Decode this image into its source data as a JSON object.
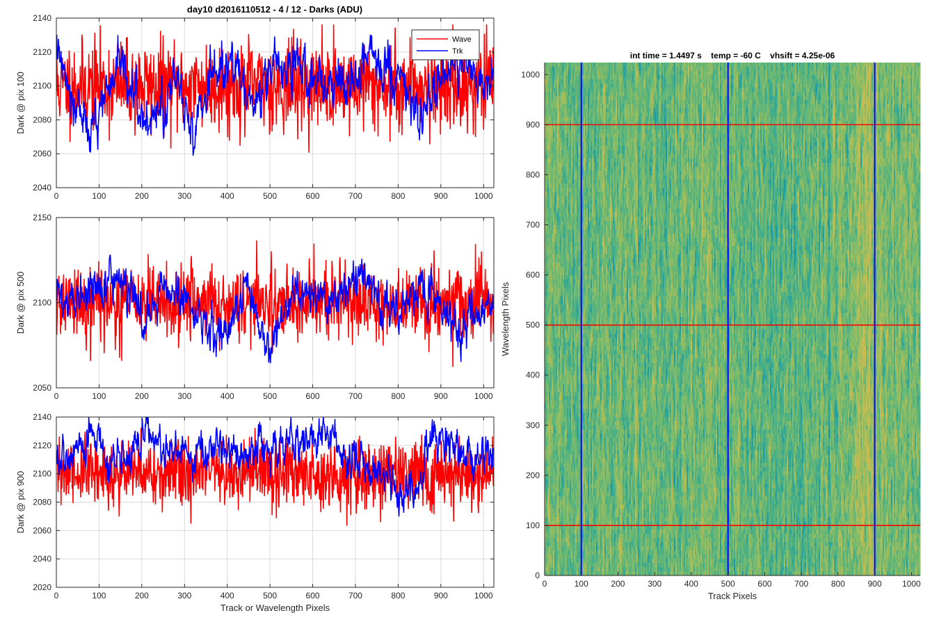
{
  "figure": {
    "title": "day10 d2016110512 - 4 / 12 - Darks (ADU)"
  },
  "colors": {
    "wave": "#ff0000",
    "trk": "#0000ff",
    "grid": "#d9d9d9",
    "axis": "#262626"
  },
  "chart_data": [
    {
      "type": "line",
      "title": "day10 d2016110512 - 4 / 12 - Darks (ADU)",
      "ylabel": "Dark @ pix 100",
      "xlabel": "",
      "xlim": [
        0,
        1024
      ],
      "ylim": [
        2040,
        2140
      ],
      "xticks": [
        0,
        100,
        200,
        300,
        400,
        500,
        600,
        700,
        800,
        900,
        1000
      ],
      "yticks": [
        2040,
        2060,
        2080,
        2100,
        2120,
        2140
      ],
      "grid": true,
      "legend": {
        "placement": "top-right",
        "entries": [
          "Wave",
          "Trk"
        ]
      },
      "series": [
        {
          "name": "Wave",
          "color": "#ff0000",
          "mean": 2100,
          "noise": 13,
          "seed": 11,
          "min": 2053,
          "max": 2136
        },
        {
          "name": "Trk",
          "color": "#0000ff",
          "seed": 12,
          "min": 2058,
          "max": 2130,
          "trend": [
            [
              0,
              2124
            ],
            [
              40,
              2095
            ],
            [
              80,
              2070
            ],
            [
              120,
              2100
            ],
            [
              160,
              2112
            ],
            [
              200,
              2080
            ],
            [
              240,
              2082
            ],
            [
              280,
              2105
            ],
            [
              320,
              2075
            ],
            [
              360,
              2105
            ],
            [
              400,
              2112
            ],
            [
              460,
              2090
            ],
            [
              500,
              2110
            ],
            [
              540,
              2115
            ],
            [
              600,
              2105
            ],
            [
              640,
              2098
            ],
            [
              700,
              2100
            ],
            [
              740,
              2118
            ],
            [
              780,
              2112
            ],
            [
              820,
              2100
            ],
            [
              860,
              2075
            ],
            [
              900,
              2110
            ],
            [
              960,
              2114
            ],
            [
              1000,
              2103
            ],
            [
              1024,
              2100
            ]
          ],
          "noise": 6
        }
      ]
    },
    {
      "type": "line",
      "ylabel": "Dark @ pix 500",
      "xlabel": "",
      "xlim": [
        0,
        1024
      ],
      "ylim": [
        2050,
        2150
      ],
      "xticks": [
        0,
        100,
        200,
        300,
        400,
        500,
        600,
        700,
        800,
        900,
        1000
      ],
      "yticks": [
        2050,
        2100,
        2150
      ],
      "grid": true,
      "series": [
        {
          "name": "Wave",
          "color": "#ff0000",
          "mean": 2100,
          "noise": 11,
          "seed": 21,
          "min": 2055,
          "max": 2140
        },
        {
          "name": "Trk",
          "color": "#0000ff",
          "seed": 22,
          "min": 2054,
          "max": 2128,
          "trend": [
            [
              0,
              2105
            ],
            [
              40,
              2095
            ],
            [
              80,
              2110
            ],
            [
              150,
              2115
            ],
            [
              200,
              2090
            ],
            [
              240,
              2108
            ],
            [
              300,
              2105
            ],
            [
              360,
              2080
            ],
            [
              400,
              2085
            ],
            [
              440,
              2110
            ],
            [
              500,
              2065
            ],
            [
              540,
              2100
            ],
            [
              600,
              2105
            ],
            [
              640,
              2100
            ],
            [
              700,
              2120
            ],
            [
              740,
              2105
            ],
            [
              800,
              2098
            ],
            [
              860,
              2108
            ],
            [
              900,
              2100
            ],
            [
              940,
              2085
            ],
            [
              1000,
              2095
            ],
            [
              1024,
              2100
            ]
          ],
          "noise": 5
        }
      ]
    },
    {
      "type": "line",
      "ylabel": "Dark @ pix 900",
      "xlabel": "Track or Wavelength Pixels",
      "xlim": [
        0,
        1024
      ],
      "ylim": [
        2020,
        2140
      ],
      "xticks": [
        0,
        100,
        200,
        300,
        400,
        500,
        600,
        700,
        800,
        900,
        1000
      ],
      "yticks": [
        2020,
        2040,
        2060,
        2080,
        2100,
        2120,
        2140
      ],
      "grid": true,
      "series": [
        {
          "name": "Wave",
          "color": "#ff0000",
          "mean": 2100,
          "noise": 12,
          "seed": 31,
          "min": 2037,
          "max": 2132
        },
        {
          "name": "Trk",
          "color": "#0000ff",
          "seed": 32,
          "min": 2068,
          "max": 2140,
          "trend": [
            [
              0,
              2108
            ],
            [
              40,
              2118
            ],
            [
              80,
              2128
            ],
            [
              120,
              2110
            ],
            [
              160,
              2108
            ],
            [
              220,
              2130
            ],
            [
              250,
              2110
            ],
            [
              300,
              2115
            ],
            [
              360,
              2120
            ],
            [
              400,
              2110
            ],
            [
              460,
              2115
            ],
            [
              520,
              2118
            ],
            [
              580,
              2120
            ],
            [
              640,
              2125
            ],
            [
              700,
              2110
            ],
            [
              760,
              2100
            ],
            [
              800,
              2085
            ],
            [
              840,
              2090
            ],
            [
              880,
              2130
            ],
            [
              920,
              2120
            ],
            [
              960,
              2112
            ],
            [
              1024,
              2110
            ]
          ],
          "noise": 6
        }
      ]
    },
    {
      "type": "heatmap",
      "title": "int time = 1.4497 s    temp = -60 C    vhsift = 4.25e-06",
      "xlabel": "Track Pixels",
      "ylabel": "Wavelength Pixels",
      "xlim": [
        0,
        1024
      ],
      "ylim": [
        0,
        1024
      ],
      "xticks": [
        0,
        100,
        200,
        300,
        400,
        500,
        600,
        700,
        800,
        900,
        1000
      ],
      "yticks": [
        0,
        100,
        200,
        300,
        400,
        500,
        600,
        700,
        800,
        900,
        1000
      ],
      "colormap": [
        "#1a9aa8",
        "#3fac8c",
        "#6cb873",
        "#9cbd5f",
        "#c9bb4f"
      ],
      "column_bias": [
        [
          0,
          0.55
        ],
        [
          60,
          0.45
        ],
        [
          150,
          0.5
        ],
        [
          300,
          0.45
        ],
        [
          450,
          0.55
        ],
        [
          560,
          0.42
        ],
        [
          700,
          0.38
        ],
        [
          800,
          0.5
        ],
        [
          880,
          0.75
        ],
        [
          940,
          0.55
        ],
        [
          1024,
          0.5
        ]
      ],
      "vlines": {
        "color": "#0000ff",
        "x": [
          100,
          500,
          900
        ]
      },
      "hlines": {
        "color": "#ff0000",
        "y": [
          100,
          500,
          900
        ]
      }
    }
  ]
}
